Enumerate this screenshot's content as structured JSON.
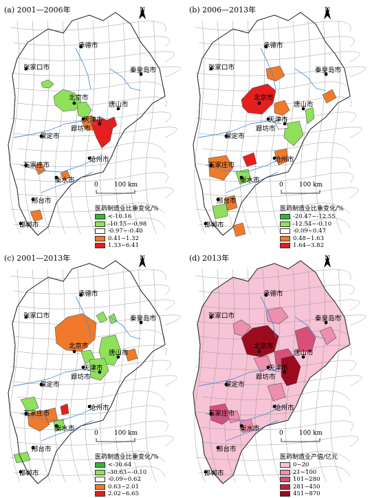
{
  "north_label": "N",
  "scale_labels": [
    "0",
    "100 km"
  ],
  "cities": {
    "chengde": "承德市",
    "zhangjiakou": "张家口市",
    "beijing": "北京市",
    "qinhuangdao": "秦皇岛市",
    "tangshan": "唐山市",
    "tianjin": "天津市",
    "langfang": "廊坊市",
    "baoding": "保定市",
    "cangzhou": "沧州市",
    "shijiazhuang": "石家庄市",
    "hengshui": "衡水市",
    "xingtai": "邢台市",
    "handan": "邯郸市"
  },
  "panels": [
    {
      "title": "(a) 2001—2006年",
      "legend_title": "医药制造业比重变化/%",
      "legend": [
        {
          "label": "<-10.16",
          "color": "#2db92d"
        },
        {
          "label": "-10.15~-0.98",
          "color": "#8fe05a"
        },
        {
          "label": "-0.97~-0.40",
          "color": "#ffffff"
        },
        {
          "label": "0.41~1.32",
          "color": "#f07a2a"
        },
        {
          "label": "1.33~6.41",
          "color": "#e51e1e"
        }
      ]
    },
    {
      "title": "(b) 2006—2013年",
      "legend_title": "医药制造业比重变化/%",
      "legend": [
        {
          "label": "-20.47~-12.55",
          "color": "#2db92d"
        },
        {
          "label": "-12.54~-0.10",
          "color": "#8fe05a"
        },
        {
          "label": "-0.09~0.47",
          "color": "#ffffff"
        },
        {
          "label": "0.48~1.63",
          "color": "#f07a2a"
        },
        {
          "label": "1.64~3.82",
          "color": "#e51e1e"
        }
      ]
    },
    {
      "title": "(c) 2001—2013年",
      "legend_title": "医药制造业比重变化/%",
      "legend": [
        {
          "label": "<-30.64",
          "color": "#2db92d"
        },
        {
          "label": "-30.63~-0.10",
          "color": "#8fe05a"
        },
        {
          "label": "-0.09~0.62",
          "color": "#ffffff"
        },
        {
          "label": "0.63~2.01",
          "color": "#f07a2a"
        },
        {
          "label": "2.02~6.65",
          "color": "#e51e1e"
        }
      ]
    },
    {
      "title": "(d) 2013年",
      "legend_title": "医药制造业产值/亿元",
      "legend": [
        {
          "label": "0~20",
          "color": "#f7c3d6"
        },
        {
          "label": "21~100",
          "color": "#ee8fae"
        },
        {
          "label": "101~280",
          "color": "#d94f7a"
        },
        {
          "label": "281~450",
          "color": "#c01f40"
        },
        {
          "label": "451~870",
          "color": "#9c0a1e"
        }
      ]
    }
  ]
}
